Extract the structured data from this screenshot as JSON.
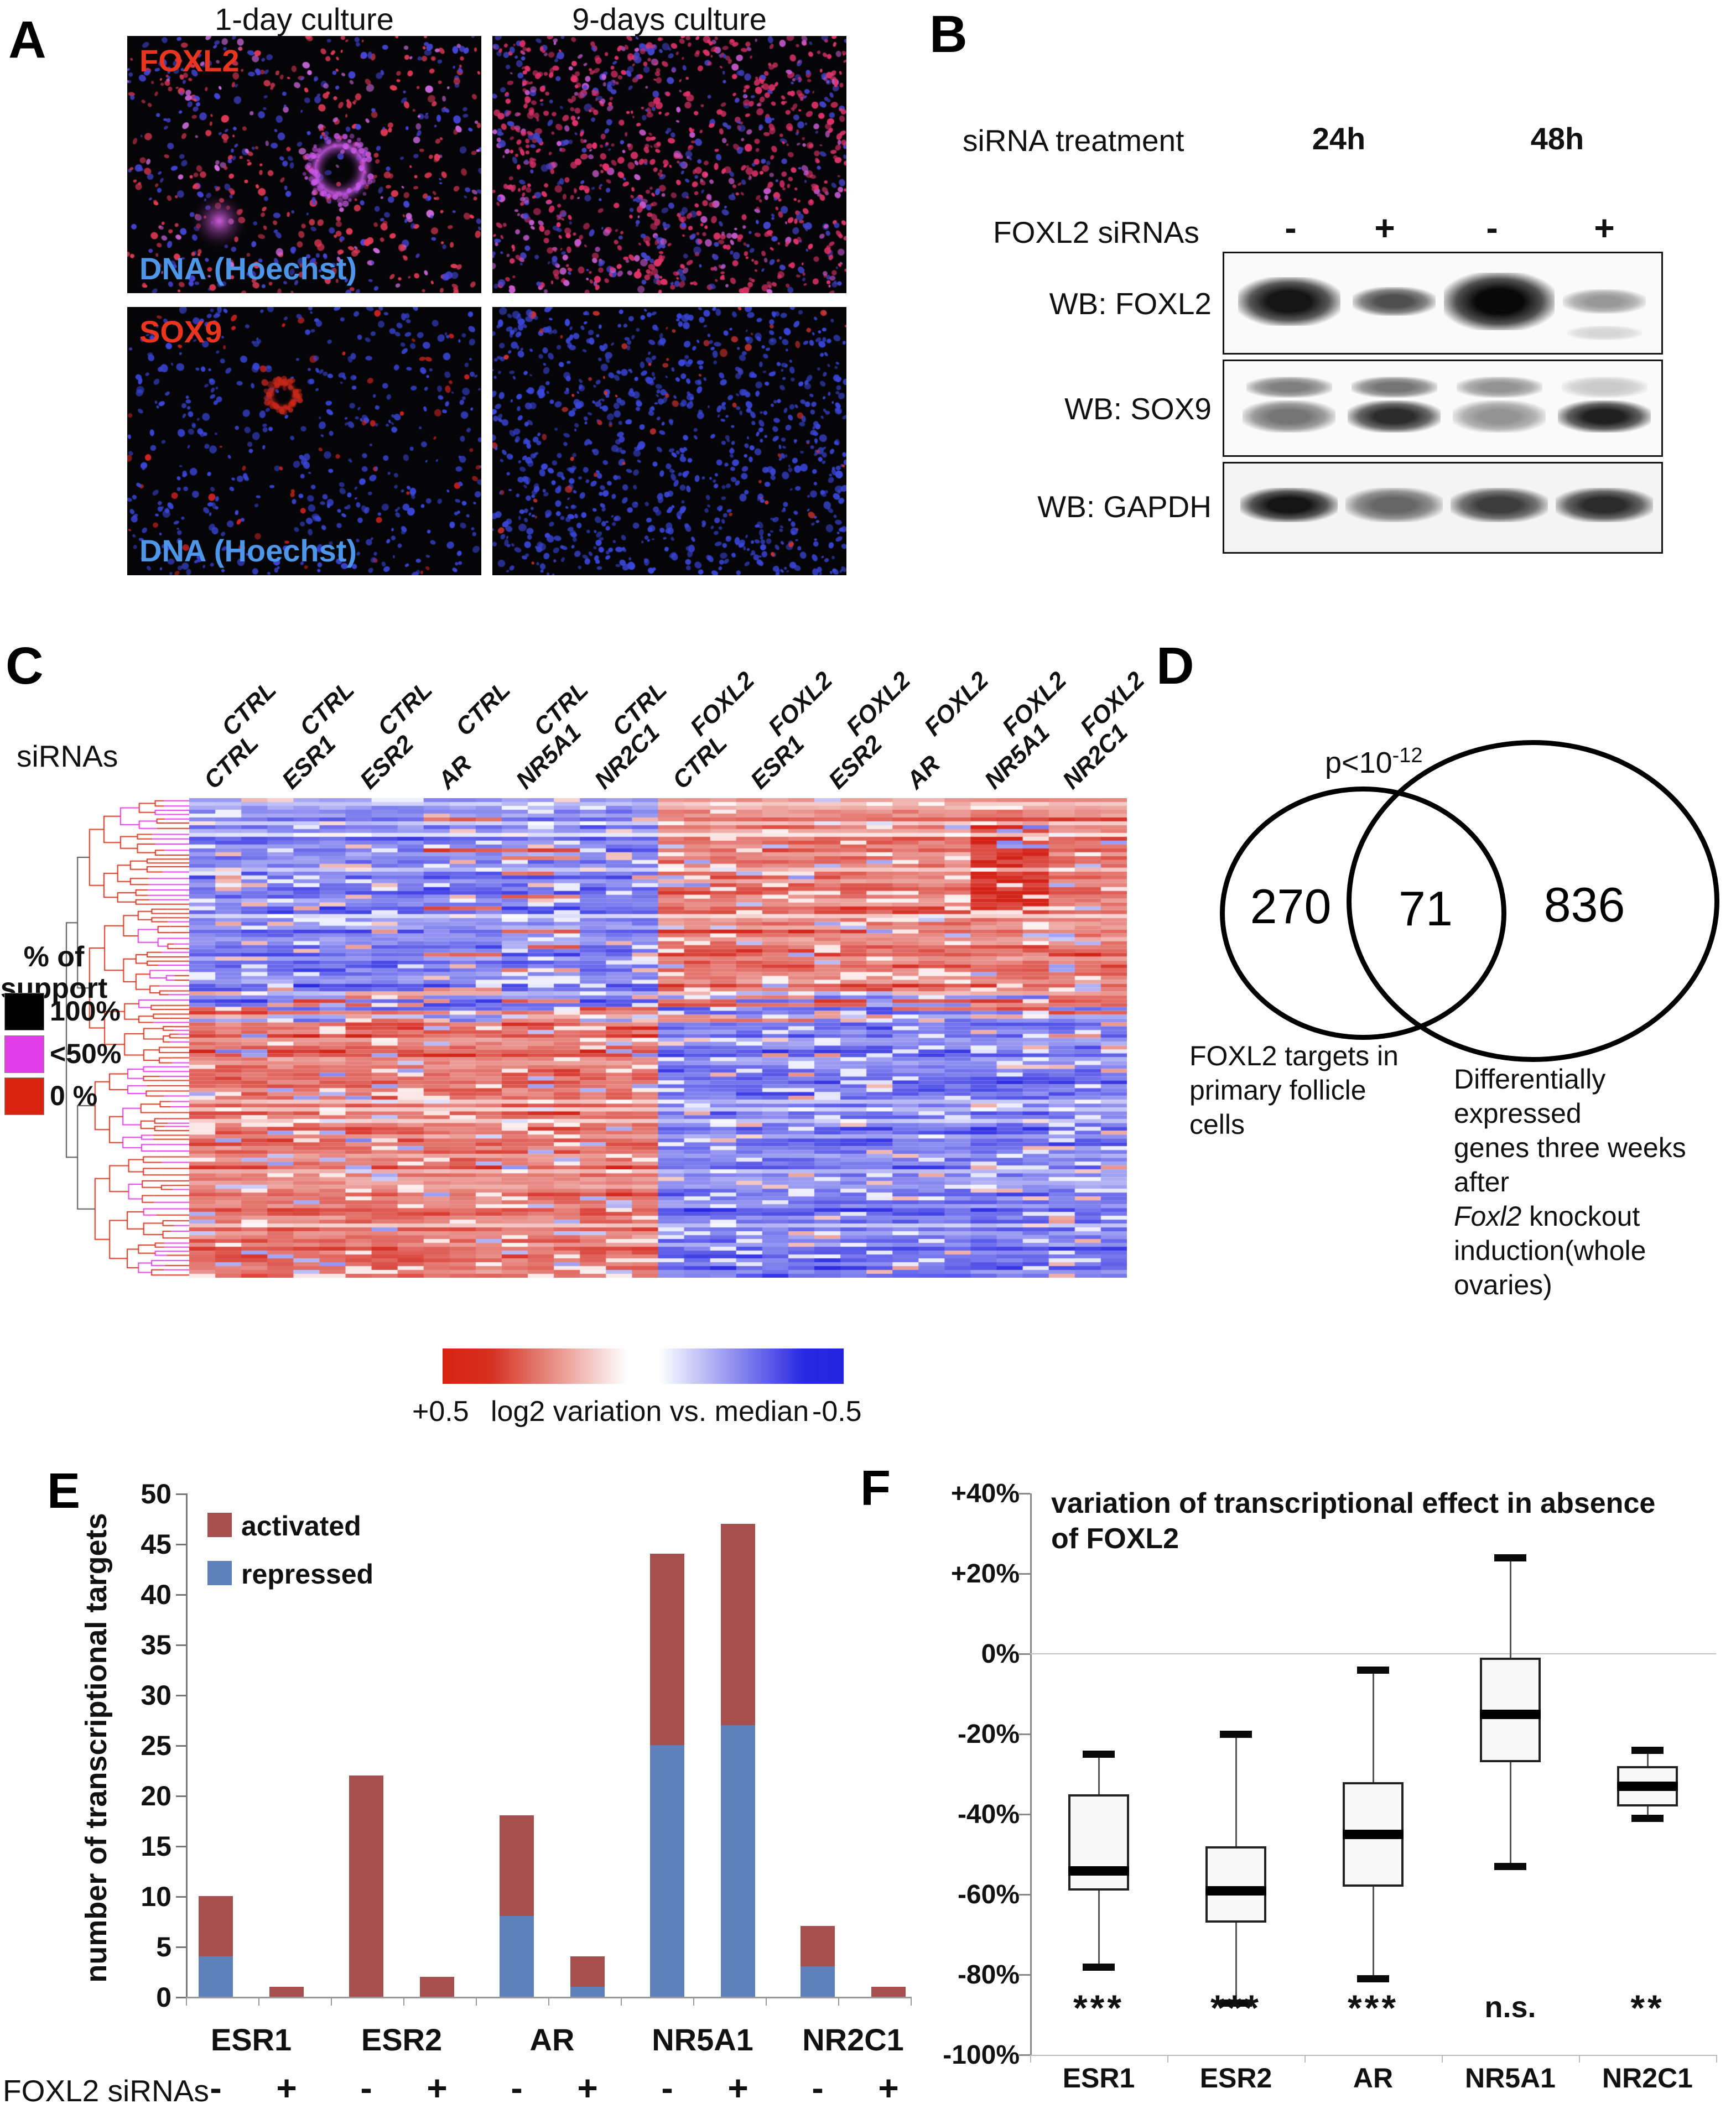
{
  "panel_labels": {
    "a": "A",
    "b": "B",
    "c": "C",
    "d": "D",
    "e": "E",
    "f": "F"
  },
  "panel_a": {
    "column_headers": [
      "1-day culture",
      "9-days culture"
    ],
    "rows": [
      {
        "marker_label": "FOXL2",
        "dna_label": "DNA (Hoechst)"
      },
      {
        "marker_label": "SOX9",
        "dna_label": "DNA (Hoechst)"
      }
    ],
    "colors": {
      "marker_label": "#e8351f",
      "dna_label": "#4d96e8"
    }
  },
  "panel_b": {
    "treatment_label": "siRNA treatment",
    "timepoints": [
      "24h",
      "48h"
    ],
    "sirna_label": "FOXL2 siRNAs",
    "lane_signs": [
      "-",
      "+",
      "-",
      "+"
    ],
    "blots": [
      {
        "label": "WB: FOXL2",
        "pattern": "single-strong",
        "lane_intensities": [
          0.95,
          0.7,
          1.0,
          0.4
        ]
      },
      {
        "label": "WB: SOX9",
        "pattern": "double",
        "lane_intensities_upper": [
          0.5,
          0.55,
          0.42,
          0.2
        ],
        "lane_intensities_lower": [
          0.55,
          0.85,
          0.42,
          0.9
        ]
      },
      {
        "label": "WB: GAPDH",
        "pattern": "single",
        "lane_intensities": [
          0.95,
          0.6,
          0.78,
          0.85
        ]
      }
    ]
  },
  "panel_c": {
    "sirnas_label": "siRNAs",
    "columns": [
      {
        "group": "CTRL",
        "sirna": "CTRL"
      },
      {
        "group": "CTRL",
        "sirna": "ESR1"
      },
      {
        "group": "CTRL",
        "sirna": "ESR2"
      },
      {
        "group": "CTRL",
        "sirna": "AR"
      },
      {
        "group": "CTRL",
        "sirna": "NR5A1"
      },
      {
        "group": "CTRL",
        "sirna": "NR2C1"
      },
      {
        "group": "FOXL2",
        "sirna": "CTRL"
      },
      {
        "group": "FOXL2",
        "sirna": "ESR1"
      },
      {
        "group": "FOXL2",
        "sirna": "ESR2"
      },
      {
        "group": "FOXL2",
        "sirna": "AR"
      },
      {
        "group": "FOXL2",
        "sirna": "NR5A1"
      },
      {
        "group": "FOXL2",
        "sirna": "NR2C1"
      }
    ],
    "support_legend": {
      "title_lines": [
        "% of",
        "support"
      ],
      "items": [
        {
          "label": "100%",
          "color": "#000000"
        },
        {
          "label": "<50%",
          "color": "#e23de6"
        },
        {
          "label": "0 %",
          "color": "#d92412"
        }
      ]
    },
    "colorbar": {
      "left_value": "+0.5",
      "caption": "log2 variation vs. median",
      "right_value": "-0.5"
    }
  },
  "panel_d": {
    "p_value_base": "p<10",
    "p_value_exponent": "-12",
    "left_count": "270",
    "overlap_count": "71",
    "right_count": "836",
    "left_label_lines": [
      "FOXL2 targets in",
      "primary follicle",
      "cells"
    ],
    "right_label_lines_1": "Differentially expressed",
    "right_label_lines_2": "genes three weeks after",
    "right_label_lines_3_italic": "Foxl2",
    "right_label_lines_3_rest": " knockout",
    "right_label_lines_4": "induction(whole ovaries)"
  },
  "chart_data": [
    {
      "id": "panel_e",
      "type": "bar",
      "subtype": "stacked",
      "ylabel": "number of transcriptional targets",
      "ylim": [
        0,
        50
      ],
      "ytick_step": 5,
      "categories": [
        "ESR1",
        "ESR2",
        "AR",
        "NR5A1",
        "NR2C1"
      ],
      "legend": [
        {
          "name": "activated",
          "color": "#a5504e"
        },
        {
          "name": "repressed",
          "color": "#5f81bb"
        }
      ],
      "x_row_label": "FOXL2 siRNAs",
      "conditions": [
        "-",
        "+"
      ],
      "series": [
        {
          "category": "ESR1",
          "condition": "-",
          "repressed": 4,
          "activated": 6
        },
        {
          "category": "ESR1",
          "condition": "+",
          "repressed": 0,
          "activated": 1
        },
        {
          "category": "ESR2",
          "condition": "-",
          "repressed": 0,
          "activated": 22
        },
        {
          "category": "ESR2",
          "condition": "+",
          "repressed": 0,
          "activated": 2
        },
        {
          "category": "AR",
          "condition": "-",
          "repressed": 8,
          "activated": 10
        },
        {
          "category": "AR",
          "condition": "+",
          "repressed": 1,
          "activated": 3
        },
        {
          "category": "NR5A1",
          "condition": "-",
          "repressed": 25,
          "activated": 19
        },
        {
          "category": "NR5A1",
          "condition": "+",
          "repressed": 27,
          "activated": 20
        },
        {
          "category": "NR2C1",
          "condition": "-",
          "repressed": 3,
          "activated": 4
        },
        {
          "category": "NR2C1",
          "condition": "+",
          "repressed": 0,
          "activated": 1
        }
      ]
    },
    {
      "id": "panel_f",
      "type": "box",
      "title_line1": "variation of transcriptional effect in absence",
      "title_line2": "of FOXL2",
      "ylim": [
        -100,
        40
      ],
      "ytick_labels": [
        "+40%",
        "+20%",
        "0%",
        "-20%",
        "-40%",
        "-60%",
        "-80%",
        "-100%"
      ],
      "ytick_values": [
        40,
        20,
        0,
        -20,
        -40,
        -60,
        -80,
        -100
      ],
      "categories": [
        "ESR1",
        "ESR2",
        "AR",
        "NR5A1",
        "NR2C1"
      ],
      "significance": [
        "***",
        "***",
        "***",
        "n.s.",
        "**"
      ],
      "boxes": [
        {
          "category": "ESR1",
          "whisker_high": -25,
          "q3": -35,
          "median": -54,
          "q1": -59,
          "whisker_low": -78
        },
        {
          "category": "ESR2",
          "whisker_high": -20,
          "q3": -48,
          "median": -59,
          "q1": -67,
          "whisker_low": -87
        },
        {
          "category": "AR",
          "whisker_high": -4,
          "q3": -32,
          "median": -45,
          "q1": -58,
          "whisker_low": -81
        },
        {
          "category": "NR5A1",
          "whisker_high": 24,
          "q3": -1,
          "median": -15,
          "q1": -27,
          "whisker_low": -53
        },
        {
          "category": "NR2C1",
          "whisker_high": -24,
          "q3": -28,
          "median": -33,
          "q1": -38,
          "whisker_low": -41
        }
      ]
    },
    {
      "id": "panel_c_heatmap",
      "type": "heatmap",
      "columns": [
        "CTRL+CTRL",
        "CTRL+ESR1",
        "CTRL+ESR2",
        "CTRL+AR",
        "CTRL+NR5A1",
        "CTRL+NR2C1",
        "FOXL2+CTRL",
        "FOXL2+ESR1",
        "FOXL2+ESR2",
        "FOXL2+AR",
        "FOXL2+NR5A1",
        "FOXL2+NR2C1"
      ],
      "value_scale": {
        "positive_label": "+0.5",
        "negative_label": "-0.5",
        "caption": "log2 variation vs. median",
        "positive_color": "#d32318",
        "negative_color": "#2828e2"
      },
      "structure": "hierarchically clustered genes; top block: blue (repressed) under CTRL siRNAs and red (induced) under FOXL2 siRNAs; bottom block: red under CTRL siRNAs and blue under FOXL2 siRNAs",
      "dendrogram_support_colors": {
        "full": "#000000",
        "partial": "#e23de6",
        "none": "#d92412"
      }
    }
  ]
}
